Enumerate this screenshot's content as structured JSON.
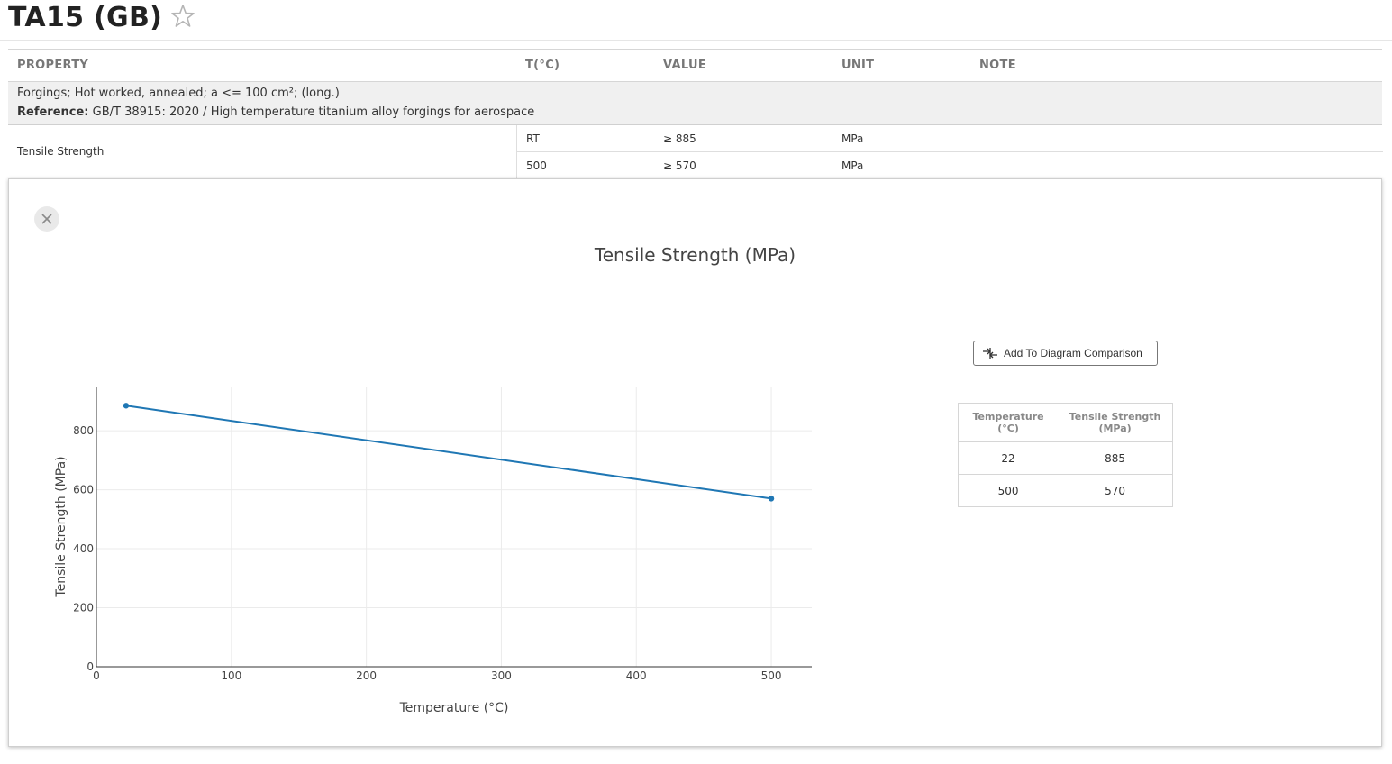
{
  "page": {
    "title": "TA15 (GB)"
  },
  "table": {
    "headers": {
      "property": "PROPERTY",
      "temp": "T(°C)",
      "value": "VALUE",
      "unit": "UNIT",
      "note": "NOTE"
    },
    "group": {
      "description": "Forgings; Hot worked, annealed; a <= 100 cm²; (long.)",
      "reference_label": "Reference:",
      "reference_text": "GB/T 38915: 2020 / High temperature titanium alloy forgings for aerospace"
    },
    "property": {
      "name": "Tensile Strength",
      "rows": [
        {
          "temp": "RT",
          "value": "≥ 885",
          "unit": "MPa"
        },
        {
          "temp": "500",
          "value": "≥ 570",
          "unit": "MPa"
        }
      ]
    }
  },
  "panel": {
    "compare_button": "Add To Diagram Comparison",
    "data_table": {
      "headers": [
        "Temperature (°C)",
        "Tensile Strength (MPa)"
      ],
      "rows": [
        [
          "22",
          "885"
        ],
        [
          "500",
          "570"
        ]
      ]
    }
  },
  "chart_data": {
    "type": "line",
    "title": "Tensile Strength (MPa)",
    "xlabel": "Temperature (°C)",
    "ylabel": "Tensile Strength (MPa)",
    "x": [
      22,
      500
    ],
    "y": [
      885,
      570
    ],
    "xlim": [
      0,
      530
    ],
    "ylim": [
      0,
      950
    ],
    "xticks": [
      0,
      100,
      200,
      300,
      400,
      500
    ],
    "yticks": [
      0,
      200,
      400,
      600,
      800
    ],
    "grid": true,
    "color": "#1f77b4"
  },
  "colors": {
    "line": "#1f77b4",
    "grid": "#ebebeb",
    "axis": "#333333"
  }
}
